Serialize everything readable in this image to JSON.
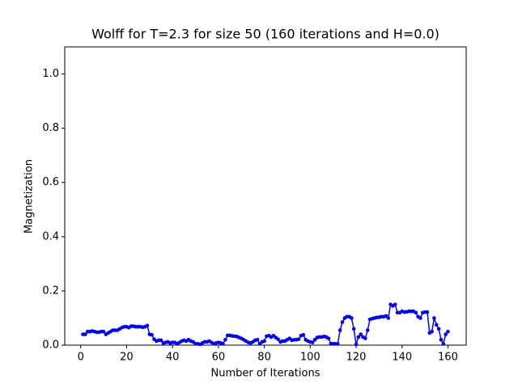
{
  "chart_data": {
    "type": "line",
    "title": "Wolff for T=2.3 for size 50 (160 iterations and H=0.0)",
    "x_label": "Number of Iterations",
    "y_label": "Magnetization",
    "x": [
      1,
      2,
      3,
      4,
      5,
      6,
      7,
      8,
      9,
      10,
      11,
      12,
      13,
      14,
      15,
      16,
      17,
      18,
      19,
      20,
      21,
      22,
      23,
      24,
      25,
      26,
      27,
      28,
      29,
      30,
      31,
      32,
      33,
      34,
      35,
      36,
      37,
      38,
      39,
      40,
      41,
      42,
      43,
      44,
      45,
      46,
      47,
      48,
      49,
      50,
      51,
      52,
      53,
      54,
      55,
      56,
      57,
      58,
      59,
      60,
      61,
      62,
      63,
      64,
      65,
      66,
      67,
      68,
      69,
      70,
      71,
      72,
      73,
      74,
      75,
      76,
      77,
      78,
      79,
      80,
      81,
      82,
      83,
      84,
      85,
      86,
      87,
      88,
      89,
      90,
      91,
      92,
      93,
      94,
      95,
      96,
      97,
      98,
      99,
      100,
      101,
      102,
      103,
      104,
      105,
      106,
      107,
      108,
      109,
      110,
      111,
      112,
      113,
      114,
      115,
      116,
      117,
      118,
      119,
      120,
      121,
      122,
      123,
      124,
      125,
      126,
      127,
      128,
      129,
      130,
      131,
      132,
      133,
      134,
      135,
      136,
      137,
      138,
      139,
      140,
      141,
      142,
      143,
      144,
      145,
      146,
      147,
      148,
      149,
      150,
      151,
      152,
      153,
      154,
      155,
      156,
      157,
      158,
      159,
      160
    ],
    "series": [
      {
        "color": "#0000ff",
        "values": [
          0.04,
          0.04,
          0.05,
          0.05,
          0.052,
          0.05,
          0.048,
          0.048,
          0.05,
          0.05,
          0.04,
          0.045,
          0.05,
          0.055,
          0.055,
          0.055,
          0.06,
          0.065,
          0.068,
          0.068,
          0.065,
          0.07,
          0.07,
          0.068,
          0.068,
          0.068,
          0.066,
          0.068,
          0.072,
          0.04,
          0.038,
          0.022,
          0.015,
          0.018,
          0.018,
          0.008,
          0.01,
          0.012,
          0.008,
          0.01,
          0.01,
          0.005,
          0.01,
          0.015,
          0.018,
          0.015,
          0.02,
          0.015,
          0.012,
          0.005,
          0.005,
          0.003,
          0.008,
          0.012,
          0.012,
          0.015,
          0.01,
          0.005,
          0.008,
          0.01,
          0.008,
          0.005,
          0.02,
          0.036,
          0.036,
          0.034,
          0.033,
          0.032,
          0.028,
          0.025,
          0.02,
          0.015,
          0.01,
          0.008,
          0.012,
          0.018,
          0.02,
          0.005,
          0.012,
          0.015,
          0.033,
          0.035,
          0.03,
          0.035,
          0.028,
          0.022,
          0.012,
          0.015,
          0.015,
          0.02,
          0.025,
          0.018,
          0.02,
          0.02,
          0.022,
          0.035,
          0.038,
          0.02,
          0.015,
          0.012,
          0.01,
          0.02,
          0.028,
          0.03,
          0.03,
          0.032,
          0.03,
          0.025,
          0.005,
          0.005,
          0.005,
          0.005,
          0.055,
          0.085,
          0.1,
          0.105,
          0.105,
          0.1,
          0.06,
          0.003,
          0.03,
          0.04,
          0.03,
          0.025,
          0.055,
          0.095,
          0.098,
          0.1,
          0.102,
          0.103,
          0.105,
          0.105,
          0.108,
          0.1,
          0.15,
          0.145,
          0.15,
          0.12,
          0.12,
          0.125,
          0.122,
          0.123,
          0.125,
          0.125,
          0.125,
          0.12,
          0.105,
          0.1,
          0.12,
          0.122,
          0.122,
          0.045,
          0.05,
          0.1,
          0.075,
          0.06,
          0.02,
          0.005,
          0.04,
          0.05
        ]
      }
    ],
    "xlim": [
      -6.95,
      167.95
    ],
    "xticks": [
      0,
      20,
      40,
      60,
      80,
      100,
      120,
      140,
      160
    ],
    "ylim": [
      0,
      1.1
    ],
    "yticks": [
      {
        "value": 0,
        "label": "0.0"
      },
      {
        "value": 0.2,
        "label": "0.2"
      },
      {
        "value": 0.4,
        "label": "0.4"
      },
      {
        "value": 0.6,
        "label": "0.6"
      },
      {
        "value": 0.8,
        "label": "0.8"
      },
      {
        "value": 1.0,
        "label": "1.0"
      }
    ]
  }
}
